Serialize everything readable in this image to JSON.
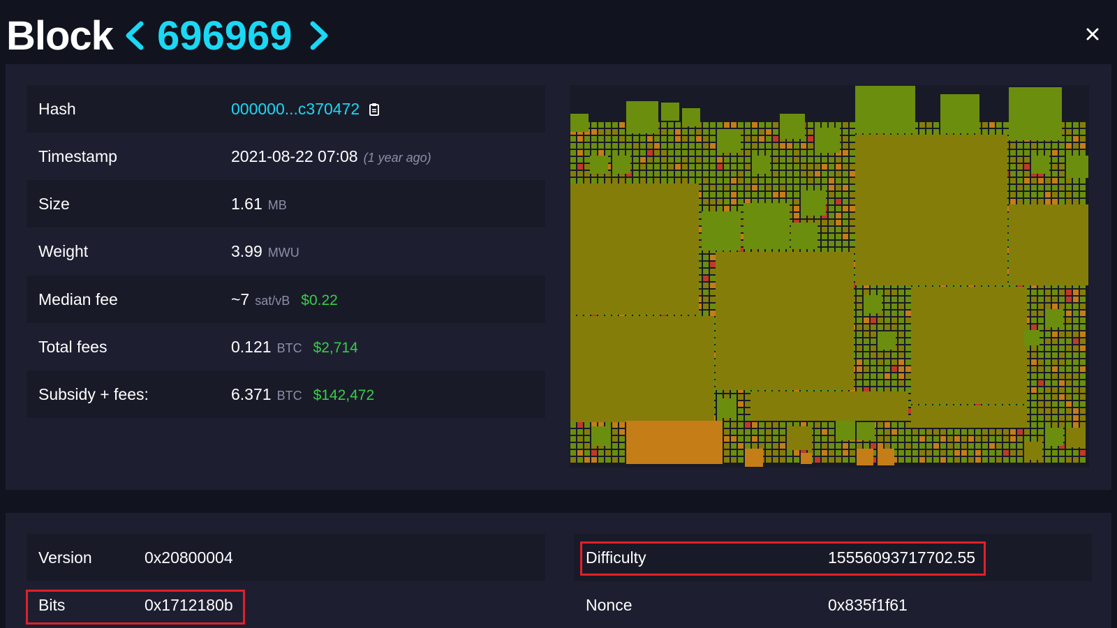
{
  "header": {
    "title": "Block",
    "height": "696969"
  },
  "details": {
    "hash_label": "Hash",
    "hash_value": "000000...c370472",
    "timestamp_label": "Timestamp",
    "timestamp_value": "2021-08-22 07:08",
    "timestamp_ago": "(1 year ago)",
    "size_label": "Size",
    "size_value": "1.61",
    "size_unit": "MB",
    "weight_label": "Weight",
    "weight_value": "3.99",
    "weight_unit": "MWU",
    "median_fee_label": "Median fee",
    "median_fee_value": "~7",
    "median_fee_unit": "sat/vB",
    "median_fee_fiat": "$0.22",
    "total_fees_label": "Total fees",
    "total_fees_value": "0.121",
    "total_fees_unit": "BTC",
    "total_fees_fiat": "$2,714",
    "subsidy_label": "Subsidy + fees:",
    "subsidy_value": "6.371",
    "subsidy_unit": "BTC",
    "subsidy_fiat": "$142,472"
  },
  "extra": {
    "version_label": "Version",
    "version_value": "0x20800004",
    "bits_label": "Bits",
    "bits_value": "0x1712180b",
    "difficulty_label": "Difficulty",
    "difficulty_value": "15556093717702.55",
    "nonce_label": "Nonce",
    "nonce_value": "0x835f1f61"
  },
  "colors": {
    "accent": "#1bd8f4",
    "fiat": "#3bcc49",
    "highlight": "#e22028",
    "tx_green": "#6b8e0f",
    "tx_olive": "#857d0a",
    "tx_orange": "#c57d17"
  },
  "icons": {
    "prev": "chevron-left-icon",
    "next": "chevron-right-icon",
    "close": "close-icon",
    "copy": "clipboard-icon"
  }
}
